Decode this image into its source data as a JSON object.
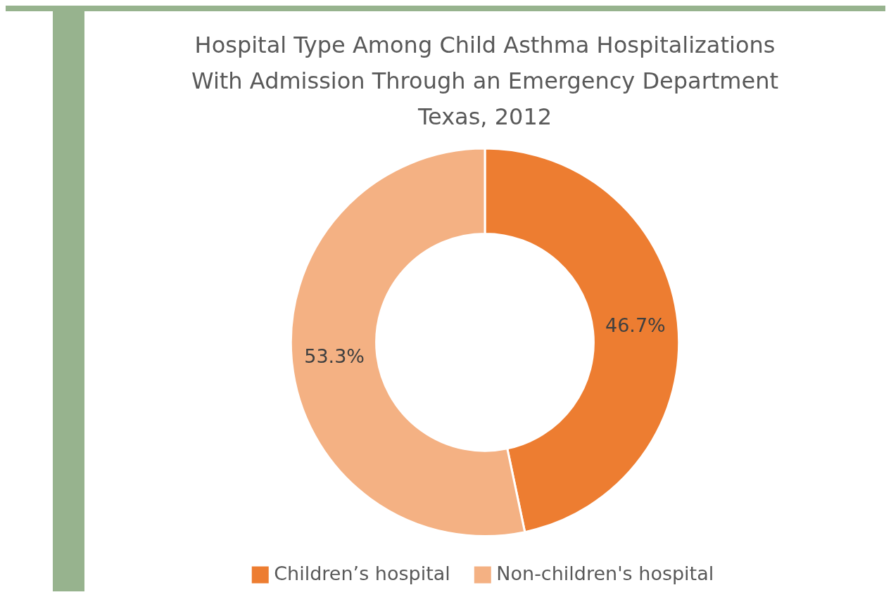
{
  "chart_data": {
    "type": "donut",
    "title": "Hospital Type Among Child Asthma Hospitalizations\nWith Admission Through an Emergency Department\nTexas, 2012",
    "categories": [
      "Children’s hospital",
      "Non-children's hospital"
    ],
    "values": [
      46.7,
      53.3
    ],
    "colors": [
      "#ed7d31",
      "#f4b183"
    ],
    "value_labels": [
      "46.7%",
      "53.3%"
    ],
    "legend": "bottom"
  }
}
